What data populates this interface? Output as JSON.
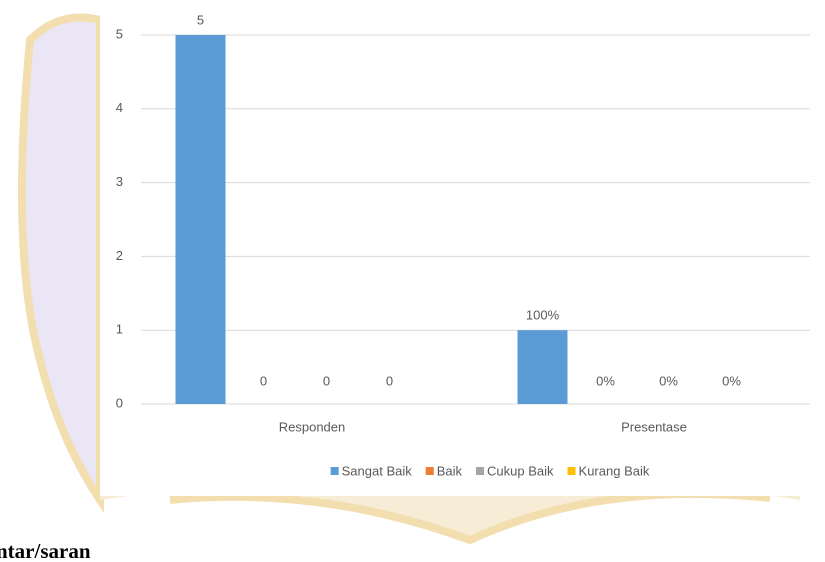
{
  "chart_data": {
    "type": "bar",
    "categories": [
      "Responden",
      "Presentase"
    ],
    "series": [
      {
        "name": "Sangat Baik",
        "color": "#5b9bd5",
        "values": [
          5,
          1
        ],
        "value_labels": [
          "5",
          "100%"
        ]
      },
      {
        "name": "Baik",
        "color": "#ed7d31",
        "values": [
          0,
          0
        ],
        "value_labels": [
          "0",
          "0%"
        ]
      },
      {
        "name": "Cukup Baik",
        "color": "#a5a5a5",
        "values": [
          0,
          0
        ],
        "value_labels": [
          "0",
          "0%"
        ]
      },
      {
        "name": "Kurang Baik",
        "color": "#ffc000",
        "values": [
          0,
          0
        ],
        "value_labels": [
          "0",
          "0%"
        ]
      }
    ],
    "ylim": [
      0,
      5
    ],
    "yticks": [
      0,
      1,
      2,
      3,
      4,
      5
    ],
    "grid": true,
    "legend": "bottom"
  },
  "caption_fragment": "ntar/saran"
}
